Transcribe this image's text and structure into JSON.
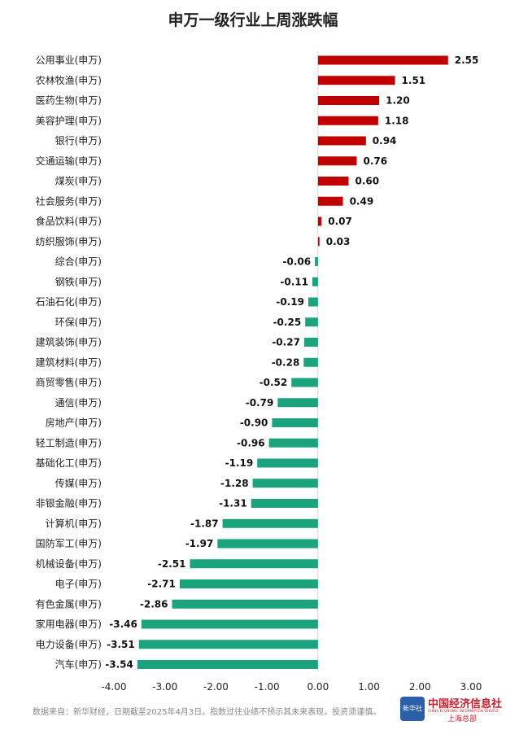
{
  "chart_data": {
    "type": "bar",
    "orientation": "horizontal",
    "title": "申万一级行业上周涨跌幅",
    "categories": [
      "公用事业(申万)",
      "农林牧渔(申万)",
      "医药生物(申万)",
      "美容护理(申万)",
      "银行(申万)",
      "交通运输(申万)",
      "煤炭(申万)",
      "社会服务(申万)",
      "食品饮料(申万)",
      "纺织服饰(申万)",
      "综合(申万)",
      "钢铁(申万)",
      "石油石化(申万)",
      "环保(申万)",
      "建筑装饰(申万)",
      "建筑材料(申万)",
      "商贸零售(申万)",
      "通信(申万)",
      "房地产(申万)",
      "轻工制造(申万)",
      "基础化工(申万)",
      "传媒(申万)",
      "非银金融(申万)",
      "计算机(申万)",
      "国防军工(申万)",
      "机械设备(申万)",
      "电子(申万)",
      "有色金属(申万)",
      "家用电器(申万)",
      "电力设备(申万)",
      "汽车(申万)"
    ],
    "values": [
      2.55,
      1.51,
      1.2,
      1.18,
      0.94,
      0.76,
      0.6,
      0.49,
      0.07,
      0.03,
      -0.06,
      -0.11,
      -0.19,
      -0.25,
      -0.27,
      -0.28,
      -0.52,
      -0.79,
      -0.9,
      -0.96,
      -1.19,
      -1.28,
      -1.31,
      -1.87,
      -1.97,
      -2.51,
      -2.71,
      -2.86,
      -3.46,
      -3.51,
      -3.54
    ],
    "value_labels": [
      "2.55",
      "1.51",
      "1.20",
      "1.18",
      "0.94",
      "0.76",
      "0.60",
      "0.49",
      "0.07",
      "0.03",
      "-0.06",
      "-0.11",
      "-0.19",
      "-0.25",
      "-0.27",
      "-0.28",
      "-0.52",
      "-0.79",
      "-0.90",
      "-0.96",
      "-1.19",
      "-1.28",
      "-1.31",
      "-1.87",
      "-1.97",
      "-2.51",
      "-2.71",
      "-2.86",
      "-3.46",
      "-3.51",
      "-3.54"
    ],
    "xlim": [
      -4.0,
      3.0
    ],
    "xticks": [
      -4.0,
      -3.0,
      -2.0,
      -1.0,
      0.0,
      1.0,
      2.0,
      3.0
    ],
    "xtick_labels": [
      "-4.00",
      "-3.00",
      "-2.00",
      "-1.00",
      "0.00",
      "1.00",
      "2.00",
      "3.00"
    ],
    "positive_color": "#c00000",
    "negative_color": "#1aa37c",
    "grid": false
  },
  "footer": "数据来自：新华财经，日期截至2025年4月3日。指数过往业绩不预示其未来表现，投资须谨慎。",
  "logo": {
    "mark_text": "新华社",
    "name": "中国经济信息社",
    "english": "CHINA ECONOMIC INFORMATION SERVICE",
    "sub": "上海总部"
  }
}
